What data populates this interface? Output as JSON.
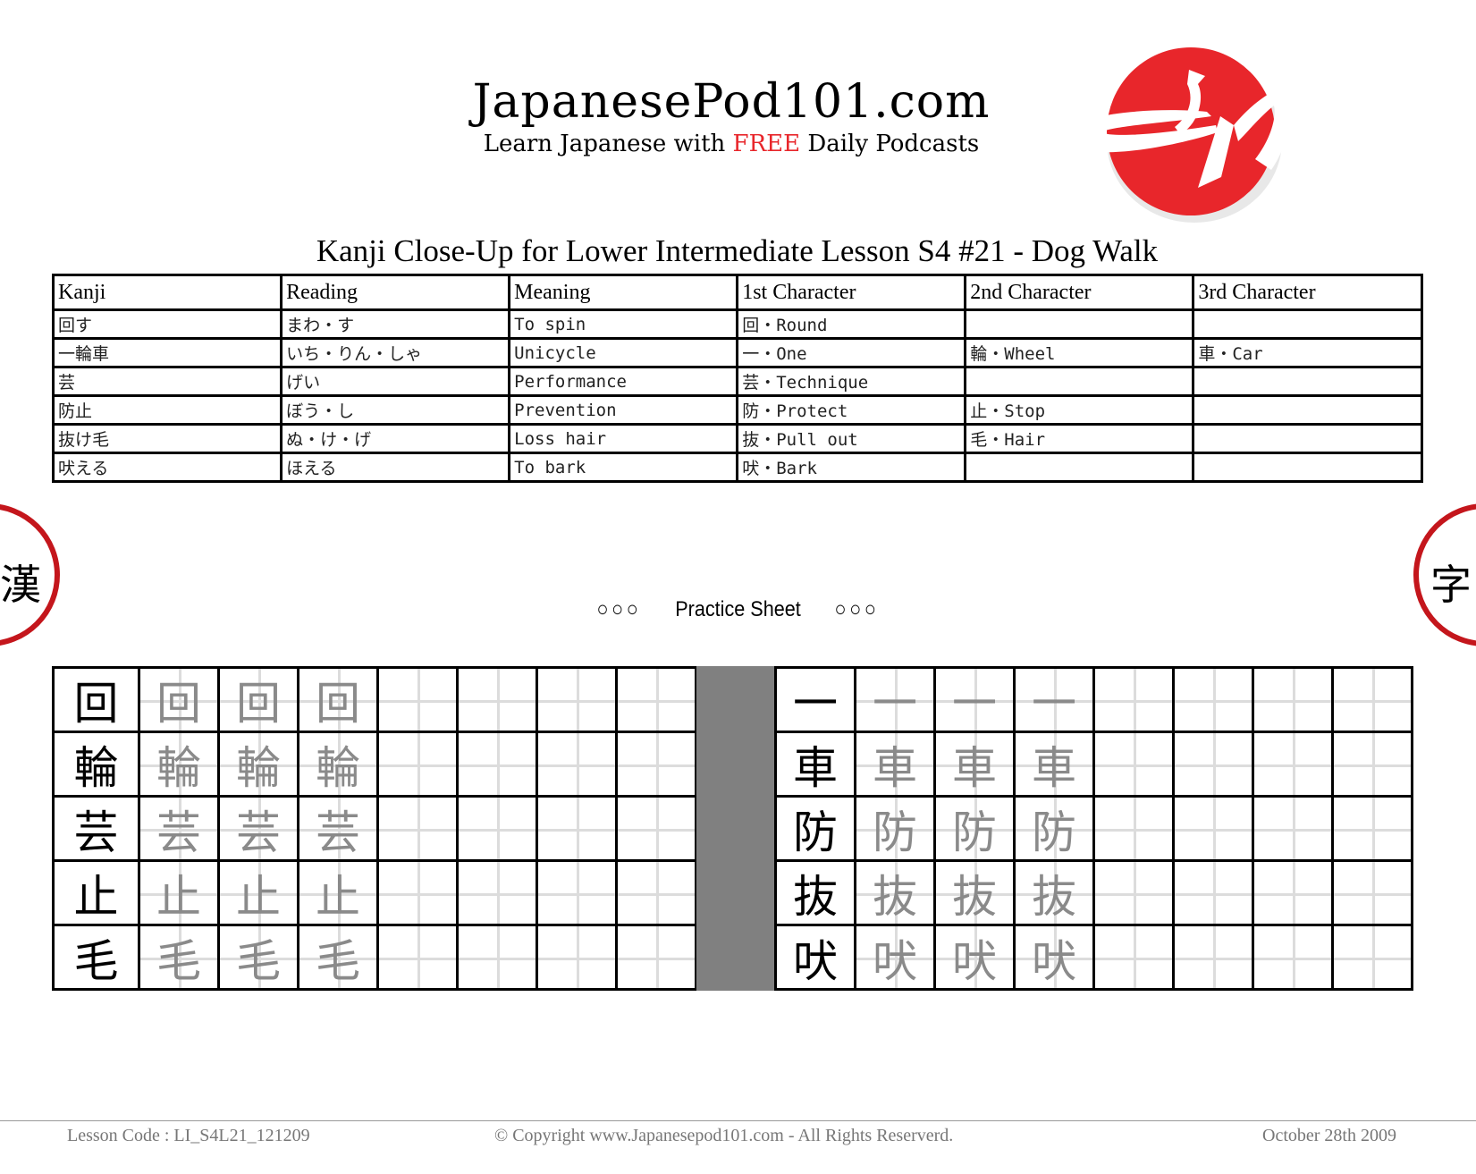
{
  "header": {
    "site_title": "JapanesePod101.com",
    "tagline_before": "Learn Japanese with ",
    "tagline_free": "FREE",
    "tagline_after": " Daily Podcasts",
    "logo_text": "JP",
    "brand_red": "#e8262b"
  },
  "document": {
    "title": "Kanji Close-Up for Lower Intermediate Lesson S4 #21 - Dog Walk"
  },
  "vocab_table": {
    "columns": [
      "Kanji",
      "Reading",
      "Meaning",
      "1st Character",
      "2nd Character",
      "3rd Character"
    ],
    "rows": [
      [
        "回す",
        "まわ・す",
        "To spin",
        "回・Round",
        "",
        ""
      ],
      [
        "一輪車",
        "いち・りん・しゃ",
        "Unicycle",
        "一・One",
        "輪・Wheel",
        "車・Car"
      ],
      [
        "芸",
        "げい",
        "Performance",
        "芸・Technique",
        "",
        ""
      ],
      [
        "防止",
        "ぼう・し",
        "Prevention",
        "防・Protect",
        "止・Stop",
        ""
      ],
      [
        "抜け毛",
        "ぬ・け・げ",
        "Loss hair",
        "抜・Pull out",
        "毛・Hair",
        ""
      ],
      [
        "吠える",
        "ほえる",
        "To bark",
        "吠・Bark",
        "",
        ""
      ]
    ]
  },
  "decorations": {
    "left_ring_char": "漢",
    "right_ring_char": "字",
    "ring_color": "#c4161c"
  },
  "practice": {
    "dots_left": "○○○",
    "label": "Practice Sheet",
    "dots_right": "○○○",
    "left_characters": [
      "回",
      "輪",
      "芸",
      "止",
      "毛"
    ],
    "right_characters": [
      "一",
      "車",
      "防",
      "抜",
      "吠"
    ],
    "trace_count": 3,
    "blank_count": 4
  },
  "footer": {
    "lesson_code": "Lesson Code : LI_S4L21_121209",
    "copyright_before": "© Copyright ",
    "copyright_link": "www.Japanesepod101.com",
    "copyright_after": " - All Rights Reserverd.",
    "date": "October 28th 2009"
  }
}
